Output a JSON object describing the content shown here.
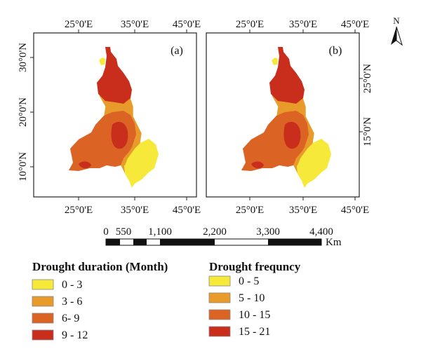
{
  "north_arrow": {
    "label": "N"
  },
  "panels": [
    {
      "label": "(a)",
      "top_lon_labels": [
        "25°0'E",
        "35°0'E",
        "45°0'E"
      ],
      "bottom_lon_labels": [
        "25°0'E",
        "35°0'E",
        "45°0'E"
      ],
      "lat_labels": [
        "30°0'N",
        "20°0'N",
        "10°0'N"
      ],
      "lat_side": "left"
    },
    {
      "label": "(b)",
      "top_lon_labels": [
        "25°0'E",
        "35°0'E",
        "45°0'E"
      ],
      "bottom_lon_labels": [
        "25°0'E",
        "35°0'E",
        "45°0'E"
      ],
      "lat_labels": [
        "25°0'N",
        "15°0'N"
      ],
      "lat_side": "right"
    }
  ],
  "scale_bar": {
    "ticks": [
      "0",
      "550",
      "1,100",
      "2,200",
      "3,300",
      "4,400"
    ],
    "unit": "Km"
  },
  "legends": [
    {
      "title": "Drought duration (Month)",
      "items": [
        {
          "label": "0 - 3",
          "color": "#f7e93a"
        },
        {
          "label": "3 - 6",
          "color": "#e89b2a"
        },
        {
          "label": "6- 9",
          "color": "#db6424"
        },
        {
          "label": "9 - 12",
          "color": "#c92d1c"
        }
      ]
    },
    {
      "title": "Drought frequncy",
      "items": [
        {
          "label": "0 - 5",
          "color": "#f7e93a"
        },
        {
          "label": "5 - 10",
          "color": "#e89b2a"
        },
        {
          "label": "10 - 15",
          "color": "#db6424"
        },
        {
          "label": "15 - 21",
          "color": "#c92d1c"
        }
      ]
    }
  ]
}
